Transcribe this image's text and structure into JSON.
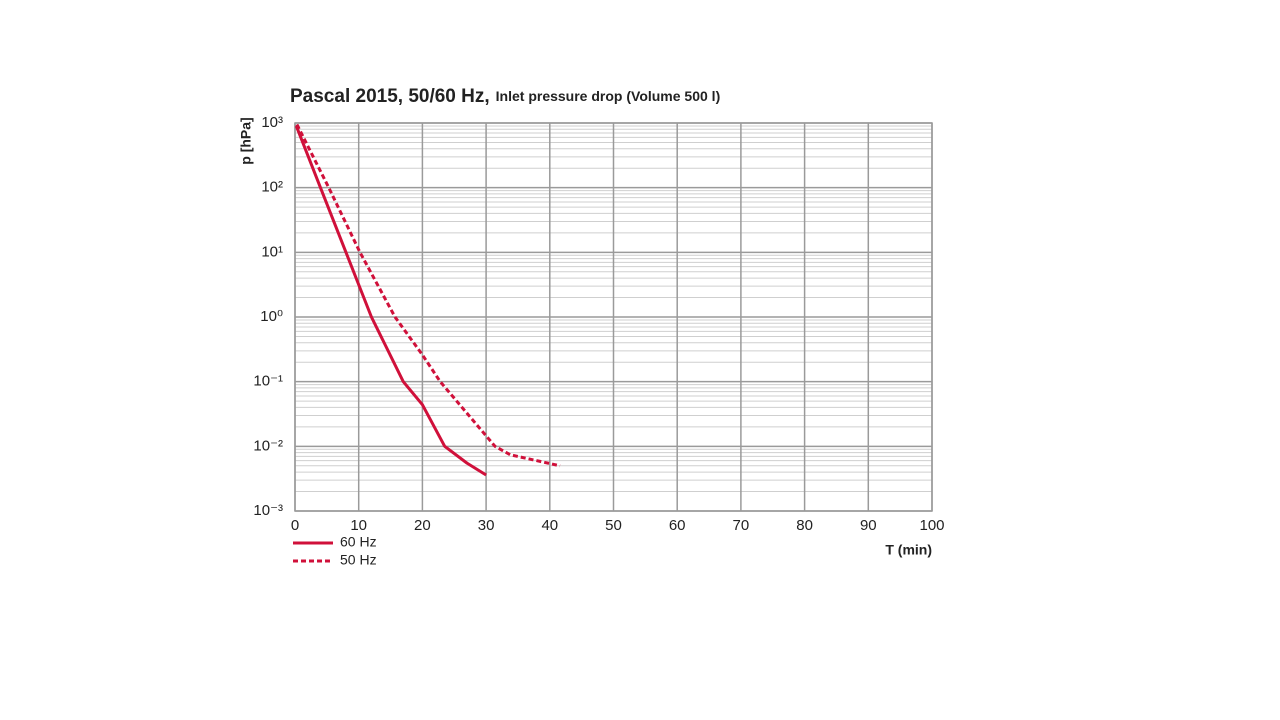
{
  "chart_data": {
    "type": "line",
    "title": "Pascal 2015, 50/60 Hz,",
    "subtitle": "Inlet pressure drop (Volume 500 l)",
    "y_label": "p [hPa]",
    "x_label": "T (min)",
    "log_y": true,
    "grid": true,
    "minor_grid": true,
    "legend": "bottom-left",
    "xlim": [
      0,
      100
    ],
    "xticks": [
      0,
      10,
      20,
      30,
      40,
      50,
      60,
      70,
      80,
      90,
      100
    ],
    "ylim": [
      0.001,
      1000
    ],
    "yticks": [
      {
        "value": 0.001,
        "label": "10⁻³"
      },
      {
        "value": 0.01,
        "label": "10⁻²"
      },
      {
        "value": 0.1,
        "label": "10⁻¹"
      },
      {
        "value": 1,
        "label": "10⁰"
      },
      {
        "value": 10,
        "label": "10¹"
      },
      {
        "value": 100,
        "label": "10²"
      },
      {
        "value": 1000,
        "label": "10³"
      }
    ],
    "series": [
      {
        "name": "60 Hz",
        "color": "#d0103a",
        "style": "solid",
        "x": [
          0.2,
          4,
          8,
          12,
          17,
          20,
          23.5,
          27,
          30
        ],
        "values": [
          900,
          100,
          10,
          1,
          0.1,
          0.044,
          0.01,
          0.0055,
          0.0036
        ]
      },
      {
        "name": "50 Hz",
        "color": "#d0103a",
        "style": "dashed",
        "x": [
          0.3,
          5.3,
          10.2,
          15.7,
          20,
          22.8,
          31.4,
          33.8,
          41.6
        ],
        "values": [
          950,
          100,
          10,
          1,
          0.26,
          0.1,
          0.01,
          0.0074,
          0.005
        ]
      }
    ]
  }
}
